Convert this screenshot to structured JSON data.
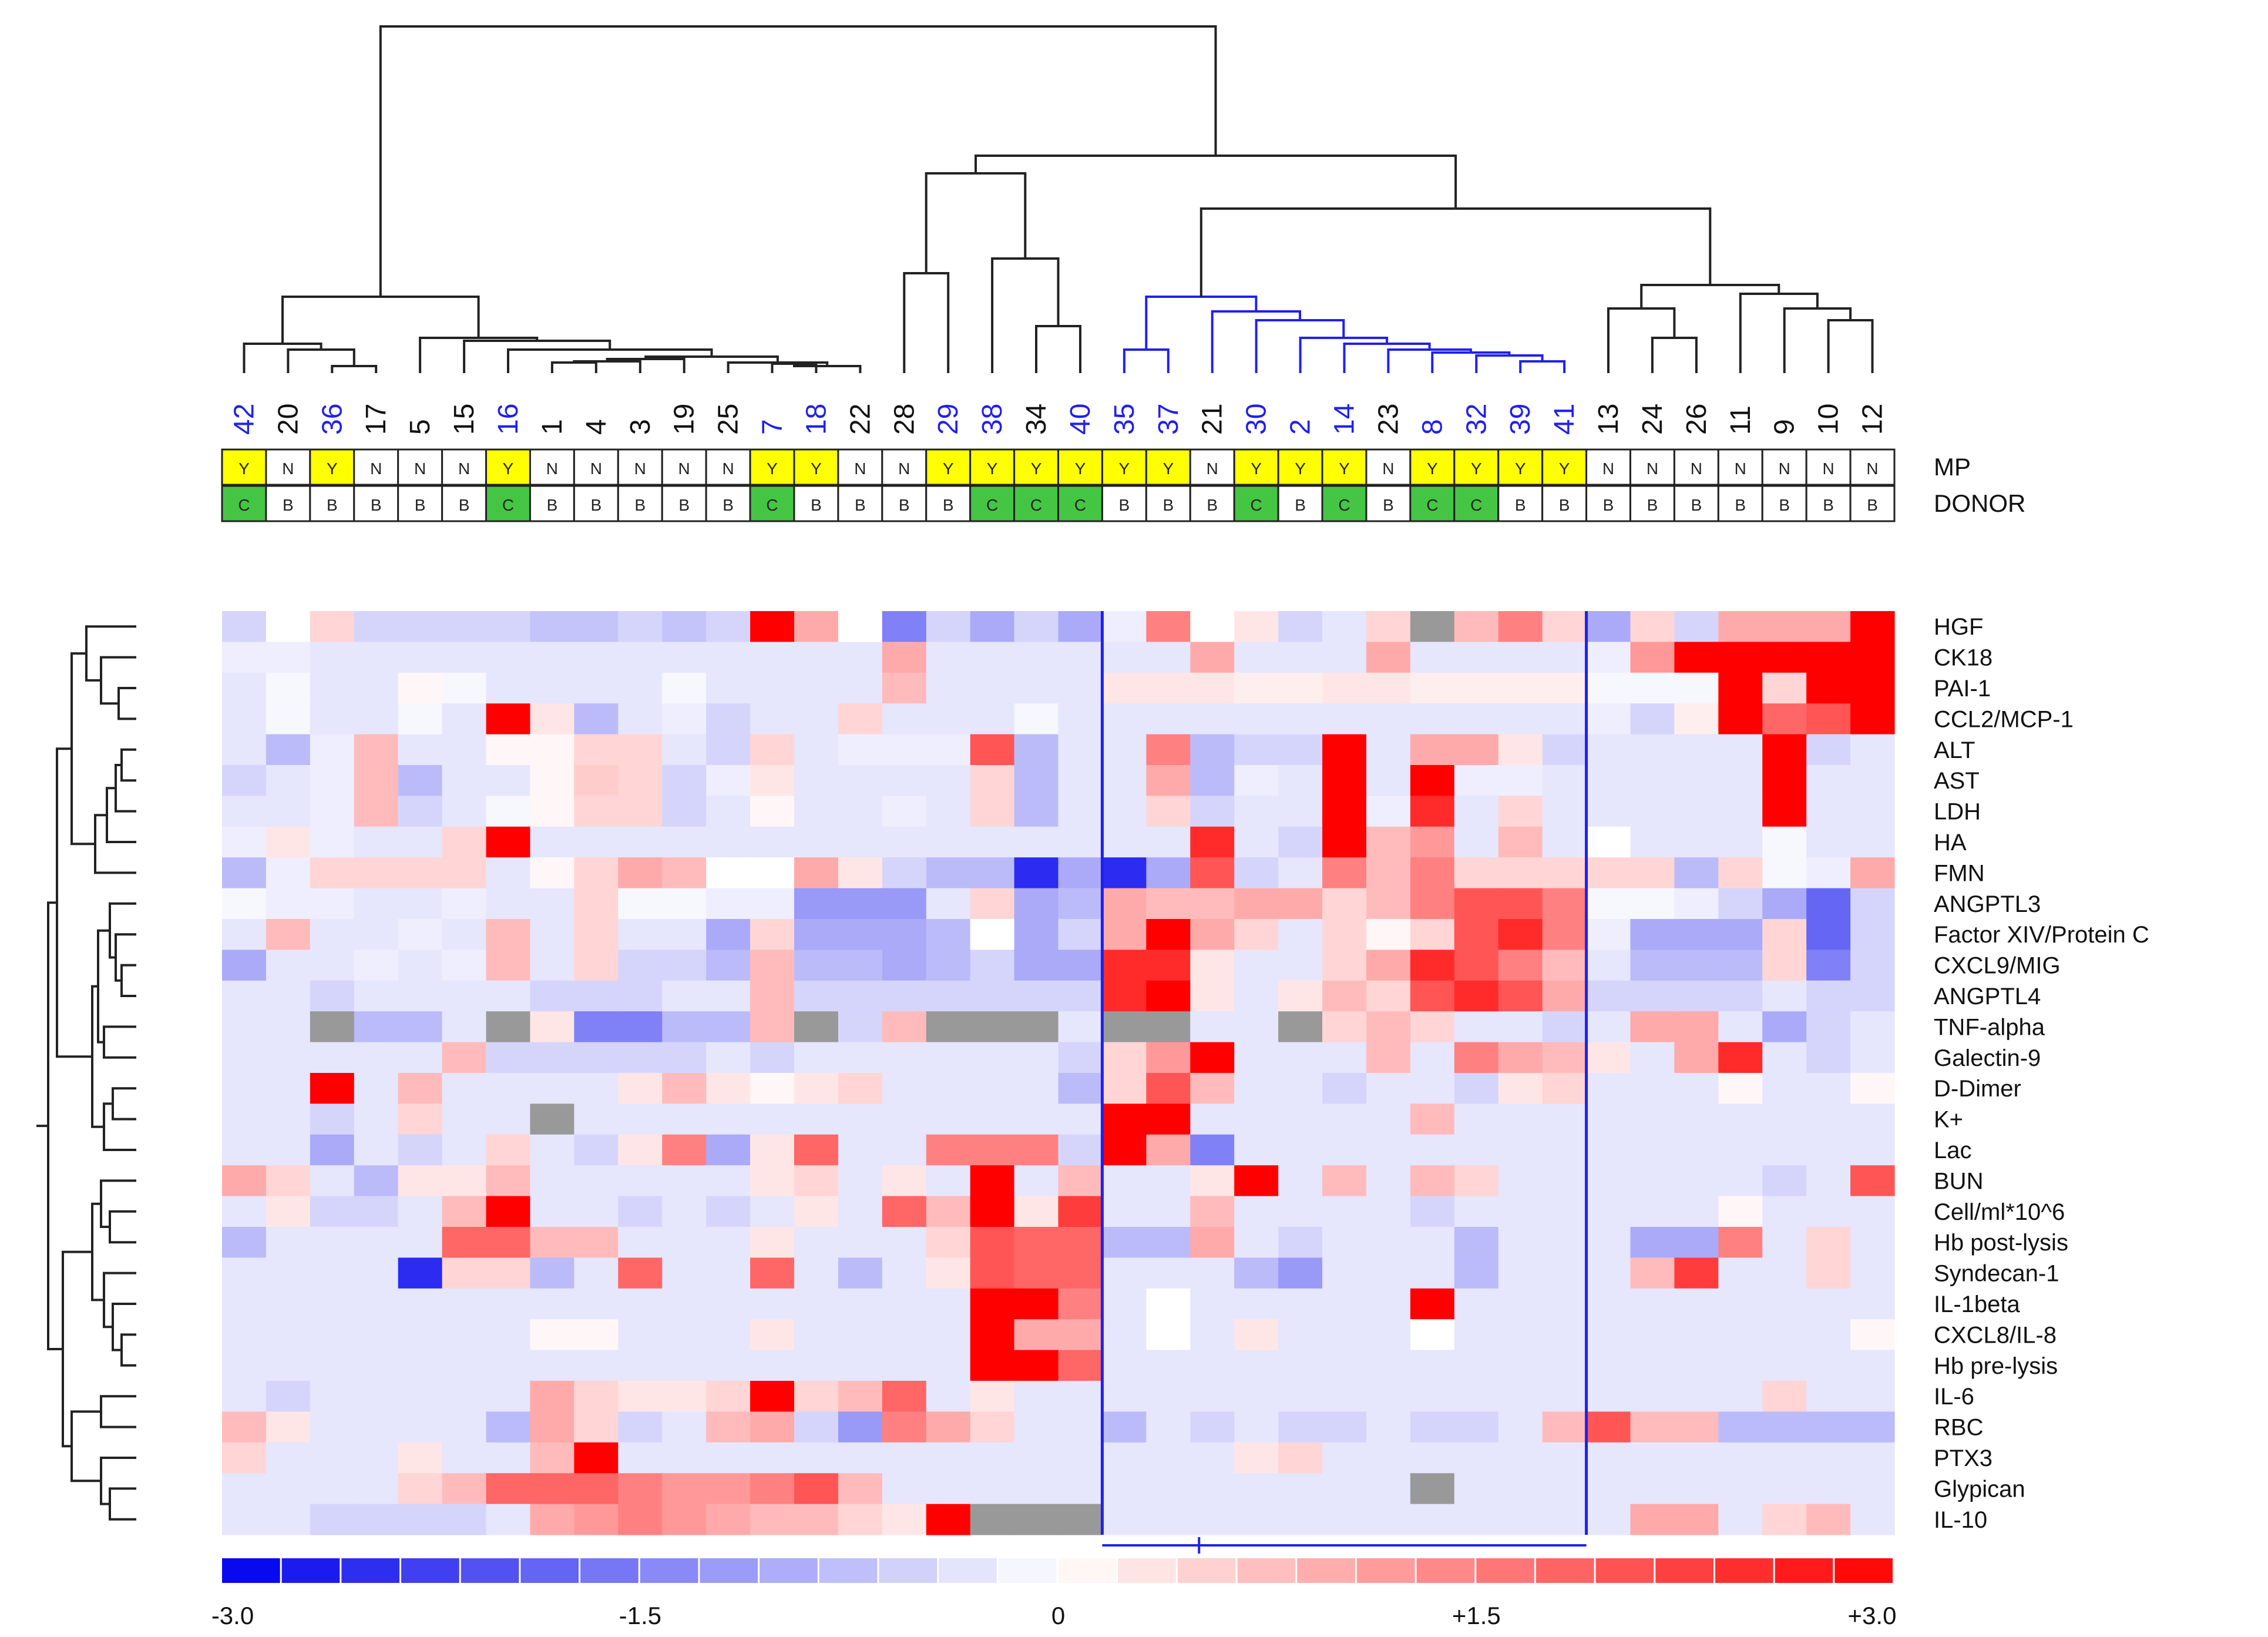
{
  "chart_data": {
    "type": "heatmap",
    "title": "",
    "columns": [
      "42",
      "20",
      "36",
      "17",
      "5",
      "15",
      "16",
      "1",
      "4",
      "3",
      "19",
      "25",
      "7",
      "18",
      "22",
      "28",
      "29",
      "38",
      "34",
      "40",
      "35",
      "37",
      "21",
      "30",
      "2",
      "14",
      "23",
      "8",
      "32",
      "39",
      "41",
      "13",
      "24",
      "26",
      "11",
      "9",
      "10",
      "12"
    ],
    "column_label_colors": [
      "blue",
      "black",
      "blue",
      "black",
      "black",
      "black",
      "blue",
      "black",
      "black",
      "black",
      "black",
      "black",
      "blue",
      "blue",
      "black",
      "black",
      "blue",
      "blue",
      "black",
      "blue",
      "blue",
      "blue",
      "black",
      "blue",
      "blue",
      "blue",
      "black",
      "blue",
      "blue",
      "blue",
      "blue",
      "black",
      "black",
      "black",
      "black",
      "black",
      "black",
      "black"
    ],
    "rows": [
      "HGF",
      "CK18",
      "PAI-1",
      "CCL2/MCP-1",
      "ALT",
      "AST",
      "LDH",
      "HA",
      "FMN",
      "ANGPTL3",
      "Factor XIV/Protein C",
      "CXCL9/MIG",
      "ANGPTL4",
      "TNF-alpha",
      "Galectin-9",
      "D-Dimer",
      "K+",
      "Lac",
      "BUN",
      "Cell/ml*10^6",
      "Hb post-lysis",
      "Syndecan-1",
      "IL-1beta",
      "CXCL8/IL-8",
      "Hb pre-lysis",
      "IL-6",
      "RBC",
      "PTX3",
      "Glypican",
      "IL-10"
    ],
    "annotation_tracks": [
      {
        "label": "MP",
        "values": [
          "Y",
          "N",
          "Y",
          "N",
          "N",
          "N",
          "Y",
          "N",
          "N",
          "N",
          "N",
          "N",
          "Y",
          "Y",
          "N",
          "N",
          "Y",
          "Y",
          "Y",
          "Y",
          "Y",
          "Y",
          "N",
          "Y",
          "Y",
          "Y",
          "N",
          "Y",
          "Y",
          "Y",
          "Y",
          "N",
          "N",
          "N",
          "N",
          "N",
          "N",
          "N"
        ]
      },
      {
        "label": "DONOR",
        "values": [
          "C",
          "B",
          "B",
          "B",
          "B",
          "B",
          "C",
          "B",
          "B",
          "B",
          "B",
          "B",
          "C",
          "B",
          "B",
          "B",
          "B",
          "C",
          "C",
          "C",
          "B",
          "B",
          "B",
          "C",
          "B",
          "C",
          "B",
          "C",
          "C",
          "B",
          "B",
          "B",
          "B",
          "B",
          "B",
          "B",
          "B",
          "B"
        ]
      }
    ],
    "track_colors": {
      "Y": "#ffff00",
      "N": "#ffffff",
      "C": "#44c644",
      "B": "#ffffff"
    },
    "highlighted_cluster_columns": [
      "35",
      "37",
      "21",
      "30",
      "2",
      "14",
      "23",
      "8",
      "32",
      "39",
      "41"
    ],
    "color_scale": {
      "min": -3.0,
      "max": 3.0,
      "low_color": "#0000ee",
      "mid_color": "#ffffff",
      "high_color": "#ff0000",
      "missing_color": "#999999",
      "tick_labels": [
        "-3.0",
        "-1.5",
        "0",
        "+1.5",
        "+3.0"
      ],
      "tick_values": [
        -3.0,
        -1.5,
        0,
        1.5,
        3.0
      ]
    },
    "matrix": [
      [
        -0.5,
        0,
        0.5,
        -0.5,
        -0.5,
        -0.5,
        -0.5,
        -0.7,
        -0.7,
        -0.5,
        -0.7,
        -0.5,
        3,
        1,
        0,
        -1.5,
        -0.5,
        -1,
        -0.5,
        -1,
        -0.2,
        1.5,
        0,
        0.3,
        -0.5,
        -0.3,
        0.5,
        null,
        0.8,
        1.5,
        0.5,
        -1,
        0.5,
        -0.5,
        1,
        1,
        1,
        3
      ],
      [
        -0.2,
        -0.2,
        -0.3,
        -0.3,
        -0.3,
        -0.3,
        -0.3,
        -0.3,
        -0.3,
        -0.3,
        -0.3,
        -0.3,
        -0.3,
        -0.3,
        -0.3,
        1,
        -0.3,
        -0.3,
        -0.3,
        -0.3,
        -0.3,
        -0.3,
        1,
        -0.3,
        -0.3,
        -0.3,
        1,
        -0.3,
        -0.3,
        -0.3,
        -0.3,
        -0.2,
        1.2,
        3,
        3,
        3,
        3,
        3
      ],
      [
        -0.3,
        -0.1,
        -0.3,
        -0.3,
        0.1,
        -0.1,
        -0.3,
        -0.3,
        -0.3,
        -0.3,
        -0.1,
        -0.3,
        -0.3,
        -0.3,
        -0.3,
        0.8,
        -0.3,
        -0.3,
        -0.3,
        -0.3,
        0.3,
        0.3,
        0.3,
        0.2,
        0.2,
        0.3,
        0.3,
        0.2,
        0.2,
        0.2,
        0.2,
        -0.1,
        -0.1,
        -0.1,
        3,
        0.5,
        3,
        3
      ],
      [
        -0.3,
        -0.1,
        -0.3,
        -0.3,
        -0.1,
        -0.3,
        3,
        0.3,
        -0.8,
        -0.3,
        -0.2,
        -0.5,
        -0.3,
        -0.3,
        0.5,
        -0.3,
        -0.3,
        -0.3,
        -0.1,
        -0.3,
        -0.3,
        -0.3,
        -0.3,
        -0.3,
        -0.3,
        -0.3,
        -0.3,
        -0.3,
        -0.3,
        -0.3,
        -0.3,
        -0.2,
        -0.5,
        0.2,
        3,
        1.8,
        2,
        3
      ],
      [
        -0.3,
        -0.8,
        -0.2,
        0.8,
        -0.3,
        -0.3,
        0.1,
        0.1,
        0.5,
        0.5,
        -0.3,
        -0.5,
        0.5,
        -0.3,
        -0.2,
        -0.2,
        -0.2,
        2,
        -0.8,
        -0.3,
        -0.3,
        1.5,
        -0.8,
        -0.5,
        -0.5,
        3,
        -0.3,
        1,
        1,
        0.3,
        -0.5,
        -0.3,
        -0.3,
        -0.3,
        -0.3,
        3,
        -0.5,
        -0.3
      ],
      [
        -0.5,
        -0.3,
        -0.2,
        0.8,
        -0.8,
        -0.3,
        -0.3,
        0.1,
        0.6,
        0.5,
        -0.5,
        -0.2,
        0.3,
        -0.3,
        -0.3,
        -0.3,
        -0.3,
        0.5,
        -0.8,
        -0.3,
        -0.3,
        1,
        -0.8,
        -0.2,
        -0.3,
        3,
        -0.3,
        3,
        -0.2,
        -0.2,
        -0.3,
        -0.3,
        -0.3,
        -0.3,
        -0.3,
        3,
        -0.3,
        -0.3
      ],
      [
        -0.3,
        -0.3,
        -0.2,
        0.8,
        -0.5,
        -0.3,
        -0.1,
        0.1,
        0.5,
        0.5,
        -0.5,
        -0.3,
        0.1,
        -0.3,
        -0.3,
        -0.2,
        -0.3,
        0.5,
        -0.8,
        -0.3,
        -0.3,
        0.5,
        -0.5,
        -0.3,
        -0.3,
        3,
        -0.2,
        2.5,
        -0.3,
        0.5,
        -0.3,
        -0.3,
        -0.3,
        -0.3,
        -0.3,
        3,
        -0.3,
        -0.3
      ],
      [
        -0.2,
        0.3,
        -0.2,
        -0.3,
        -0.3,
        0.5,
        3,
        -0.3,
        -0.3,
        -0.3,
        -0.3,
        -0.3,
        -0.3,
        -0.3,
        -0.3,
        -0.3,
        -0.3,
        -0.3,
        -0.3,
        -0.3,
        -0.3,
        -0.3,
        2.5,
        -0.3,
        -0.5,
        3,
        0.8,
        1.2,
        -0.3,
        0.8,
        -0.3,
        0,
        -0.3,
        -0.3,
        -0.3,
        -0.1,
        -0.3,
        -0.3
      ],
      [
        -0.8,
        -0.2,
        0.5,
        0.5,
        0.5,
        0.5,
        -0.3,
        0.1,
        0.5,
        1,
        0.8,
        0,
        0,
        1,
        0.3,
        -0.5,
        -0.8,
        -0.8,
        -2.5,
        -1,
        -2.5,
        -1,
        2,
        -0.5,
        -0.3,
        1.5,
        0.8,
        1.5,
        0.5,
        0.5,
        0.5,
        0.5,
        0.5,
        -0.8,
        0.5,
        -0.1,
        -0.2,
        1
      ],
      [
        -0.1,
        -0.2,
        -0.2,
        -0.3,
        -0.3,
        -0.2,
        -0.3,
        -0.3,
        0.5,
        -0.1,
        -0.1,
        -0.2,
        -0.2,
        -1.2,
        -1.2,
        -1.2,
        -0.3,
        0.5,
        -1,
        -0.8,
        1,
        0.8,
        0.8,
        1,
        1,
        0.5,
        0.8,
        1.5,
        2,
        2,
        1.5,
        -0.1,
        -0.1,
        -0.2,
        -0.5,
        -1,
        -1.8,
        -0.5
      ],
      [
        -0.3,
        0.8,
        -0.3,
        -0.3,
        -0.2,
        -0.3,
        0.8,
        -0.3,
        0.5,
        -0.3,
        -0.3,
        -1,
        0.5,
        -1,
        -1,
        -1,
        -0.8,
        0,
        -1,
        -0.5,
        1,
        3,
        1,
        0.5,
        -0.3,
        0.5,
        0.1,
        0.5,
        2,
        2.5,
        1.5,
        -0.2,
        -1,
        -1,
        -1,
        0.5,
        -1.8,
        -0.5
      ],
      [
        -1,
        -0.3,
        -0.3,
        -0.2,
        -0.3,
        -0.2,
        0.8,
        -0.3,
        0.5,
        -0.5,
        -0.5,
        -0.8,
        0.8,
        -0.8,
        -0.8,
        -1,
        -0.8,
        -0.5,
        -1,
        -1,
        2.5,
        2.5,
        0.3,
        -0.3,
        -0.3,
        0.5,
        1,
        2.5,
        2,
        1.5,
        0.8,
        -0.3,
        -0.8,
        -0.8,
        -0.8,
        0.5,
        -1.5,
        -0.5
      ],
      [
        -0.3,
        -0.3,
        -0.5,
        -0.3,
        -0.3,
        -0.3,
        -0.3,
        -0.5,
        -0.5,
        -0.5,
        -0.3,
        -0.3,
        0.8,
        -0.5,
        -0.5,
        -0.5,
        -0.5,
        -0.5,
        -0.5,
        -0.5,
        2.5,
        3,
        0.3,
        -0.3,
        0.3,
        0.8,
        0.5,
        2,
        2.5,
        2,
        1,
        -0.5,
        -0.5,
        -0.5,
        -0.5,
        -0.3,
        -0.5,
        -0.5
      ],
      [
        -0.3,
        -0.3,
        null,
        -0.8,
        -0.8,
        -0.3,
        null,
        0.3,
        -1.5,
        -1.5,
        -0.8,
        -0.8,
        0.8,
        null,
        -0.5,
        0.8,
        null,
        null,
        null,
        -0.3,
        null,
        null,
        -0.3,
        -0.3,
        null,
        0.5,
        0.8,
        0.5,
        -0.3,
        -0.3,
        -0.5,
        -0.3,
        1,
        1,
        -0.3,
        -1,
        -0.5,
        -0.3
      ],
      [
        -0.3,
        -0.3,
        -0.3,
        -0.3,
        -0.3,
        0.8,
        -0.5,
        -0.5,
        -0.5,
        -0.5,
        -0.5,
        -0.3,
        -0.5,
        -0.3,
        -0.3,
        -0.3,
        -0.3,
        -0.3,
        -0.3,
        -0.5,
        0.5,
        1.2,
        3,
        -0.3,
        -0.3,
        -0.3,
        0.8,
        -0.3,
        1.5,
        1,
        0.8,
        0.3,
        -0.3,
        1,
        2.5,
        -0.3,
        -0.5,
        -0.3
      ],
      [
        -0.3,
        -0.3,
        3,
        -0.3,
        0.8,
        -0.3,
        -0.3,
        -0.3,
        -0.3,
        0.3,
        0.8,
        0.3,
        0.1,
        0.3,
        0.5,
        -0.3,
        -0.3,
        -0.3,
        -0.3,
        -0.8,
        0.5,
        2,
        0.8,
        -0.3,
        -0.3,
        -0.5,
        -0.3,
        -0.3,
        -0.5,
        0.3,
        0.5,
        -0.3,
        -0.3,
        -0.3,
        0.1,
        -0.3,
        -0.3,
        0.1
      ],
      [
        -0.3,
        -0.3,
        -0.5,
        -0.3,
        0.5,
        -0.3,
        -0.3,
        null,
        -0.3,
        -0.3,
        -0.3,
        -0.3,
        -0.3,
        -0.3,
        -0.3,
        -0.3,
        -0.3,
        -0.3,
        -0.3,
        -0.3,
        3,
        3,
        -0.3,
        -0.3,
        -0.3,
        -0.3,
        -0.3,
        0.8,
        -0.3,
        -0.3,
        -0.3,
        -0.3,
        -0.3,
        -0.3,
        -0.3,
        -0.3,
        -0.3,
        -0.3
      ],
      [
        -0.3,
        -0.3,
        -1,
        -0.3,
        -0.5,
        -0.3,
        0.5,
        -0.3,
        -0.5,
        0.3,
        1.5,
        -1,
        0.3,
        1.8,
        -0.3,
        -0.3,
        1.5,
        1.5,
        1.5,
        -0.5,
        3,
        1,
        -1.5,
        -0.3,
        -0.3,
        -0.3,
        -0.3,
        -0.3,
        -0.3,
        -0.3,
        -0.3,
        -0.3,
        -0.3,
        -0.3,
        -0.3,
        -0.3,
        -0.3,
        -0.3
      ],
      [
        1,
        0.5,
        -0.3,
        -0.8,
        0.3,
        0.3,
        0.8,
        -0.3,
        -0.3,
        -0.3,
        -0.3,
        -0.3,
        0.3,
        0.5,
        -0.3,
        0.3,
        -0.3,
        3,
        -0.3,
        0.8,
        -0.3,
        -0.3,
        0.3,
        3,
        -0.3,
        0.8,
        -0.3,
        0.8,
        0.5,
        -0.3,
        -0.3,
        -0.3,
        -0.3,
        -0.3,
        -0.3,
        -0.5,
        -0.3,
        2
      ],
      [
        -0.3,
        0.3,
        -0.5,
        -0.5,
        -0.3,
        0.8,
        3,
        -0.3,
        -0.3,
        -0.5,
        -0.3,
        -0.5,
        -0.3,
        0.3,
        -0.3,
        1.8,
        0.8,
        3,
        0.3,
        2.3,
        -0.3,
        -0.3,
        0.8,
        -0.3,
        -0.3,
        -0.3,
        -0.3,
        -0.5,
        -0.3,
        -0.3,
        -0.3,
        -0.3,
        -0.3,
        -0.3,
        0.1,
        -0.3,
        -0.3,
        -0.3
      ],
      [
        -0.8,
        -0.3,
        -0.3,
        -0.3,
        -0.3,
        1.8,
        1.8,
        0.8,
        0.8,
        -0.3,
        -0.3,
        -0.3,
        0.3,
        -0.3,
        -0.3,
        -0.3,
        0.5,
        2,
        1.8,
        1.8,
        -0.8,
        -0.8,
        1,
        -0.3,
        -0.5,
        -0.3,
        -0.3,
        -0.3,
        -0.8,
        -0.3,
        -0.3,
        -0.3,
        -1,
        -1,
        1.5,
        -0.3,
        0.5,
        -0.3
      ],
      [
        -0.3,
        -0.3,
        -0.3,
        -0.3,
        -2.5,
        0.5,
        0.5,
        -0.8,
        -0.3,
        1.8,
        -0.3,
        -0.3,
        1.8,
        -0.3,
        -0.8,
        -0.3,
        0.3,
        2,
        1.8,
        1.8,
        -0.3,
        -0.3,
        -0.3,
        -0.8,
        -1.2,
        -0.3,
        -0.3,
        -0.3,
        -0.8,
        -0.3,
        -0.3,
        -0.3,
        0.8,
        2.3,
        -0.3,
        -0.3,
        0.5,
        -0.3
      ],
      [
        -0.3,
        -0.3,
        -0.3,
        -0.3,
        -0.3,
        -0.3,
        -0.3,
        -0.3,
        -0.3,
        -0.3,
        -0.3,
        -0.3,
        -0.3,
        -0.3,
        -0.3,
        -0.3,
        -0.3,
        3,
        3,
        1.5,
        -0.3,
        0,
        -0.3,
        -0.3,
        -0.3,
        -0.3,
        -0.3,
        3,
        -0.3,
        -0.3,
        -0.3,
        -0.3,
        -0.3,
        -0.3,
        -0.3,
        -0.3,
        -0.3,
        -0.3
      ],
      [
        -0.3,
        -0.3,
        -0.3,
        -0.3,
        -0.3,
        -0.3,
        -0.3,
        0.1,
        0.1,
        -0.3,
        -0.3,
        -0.3,
        0.3,
        -0.3,
        -0.3,
        -0.3,
        -0.3,
        3,
        1,
        1,
        -0.3,
        0,
        -0.3,
        0.3,
        -0.3,
        -0.3,
        -0.3,
        0,
        -0.3,
        -0.3,
        -0.3,
        -0.3,
        -0.3,
        -0.3,
        -0.3,
        -0.3,
        -0.3,
        0.1
      ],
      [
        -0.3,
        -0.3,
        -0.3,
        -0.3,
        -0.3,
        -0.3,
        -0.3,
        -0.3,
        -0.3,
        -0.3,
        -0.3,
        -0.3,
        -0.3,
        -0.3,
        -0.3,
        -0.3,
        -0.3,
        3,
        3,
        1.8,
        -0.3,
        -0.3,
        -0.3,
        -0.3,
        -0.3,
        -0.3,
        -0.3,
        -0.3,
        -0.3,
        -0.3,
        -0.3,
        -0.3,
        -0.3,
        -0.3,
        -0.3,
        -0.3,
        -0.3,
        -0.3
      ],
      [
        -0.3,
        -0.5,
        -0.3,
        -0.3,
        -0.3,
        -0.3,
        -0.3,
        1,
        0.5,
        0.3,
        0.3,
        0.5,
        3,
        0.5,
        0.8,
        1.8,
        -0.3,
        0.3,
        -0.3,
        -0.3,
        -0.3,
        -0.3,
        -0.3,
        -0.3,
        -0.3,
        -0.3,
        -0.3,
        -0.3,
        -0.3,
        -0.3,
        -0.3,
        -0.3,
        -0.3,
        -0.3,
        -0.3,
        0.5,
        -0.3,
        -0.3
      ],
      [
        0.8,
        0.3,
        -0.3,
        -0.3,
        -0.3,
        -0.3,
        -0.8,
        1,
        0.5,
        -0.5,
        -0.3,
        0.8,
        1,
        -0.5,
        -1.2,
        1.5,
        1,
        0.5,
        -0.3,
        -0.3,
        -0.8,
        -0.3,
        -0.5,
        -0.3,
        -0.5,
        -0.5,
        -0.3,
        -0.5,
        -0.5,
        -0.3,
        0.8,
        2,
        0.8,
        0.8,
        -0.8,
        -0.8,
        -0.8,
        -0.8
      ],
      [
        0.5,
        -0.3,
        -0.3,
        -0.3,
        0.3,
        -0.3,
        -0.3,
        0.8,
        3,
        -0.3,
        -0.3,
        -0.3,
        -0.3,
        -0.3,
        -0.3,
        -0.3,
        -0.3,
        -0.3,
        -0.3,
        -0.3,
        -0.3,
        -0.3,
        -0.3,
        0.3,
        0.5,
        -0.3,
        -0.3,
        -0.3,
        -0.3,
        -0.3,
        -0.3,
        -0.3,
        -0.3,
        -0.3,
        -0.3,
        -0.3,
        -0.3,
        -0.3
      ],
      [
        -0.3,
        -0.3,
        -0.3,
        -0.3,
        0.5,
        0.8,
        1.8,
        1.8,
        1.8,
        1.5,
        1.2,
        1.2,
        1.5,
        2,
        0.8,
        -0.3,
        -0.3,
        -0.3,
        -0.3,
        -0.3,
        -0.3,
        -0.3,
        -0.3,
        -0.3,
        -0.3,
        -0.3,
        -0.3,
        null,
        -0.3,
        -0.3,
        -0.3,
        -0.3,
        -0.3,
        -0.3,
        -0.3,
        -0.3,
        -0.3,
        -0.3
      ],
      [
        -0.3,
        -0.3,
        -0.5,
        -0.5,
        -0.5,
        -0.5,
        -0.3,
        1,
        1.2,
        1.5,
        1.2,
        1,
        0.8,
        0.8,
        0.5,
        0.3,
        3,
        null,
        null,
        null,
        -0.3,
        -0.3,
        -0.3,
        -0.3,
        -0.3,
        -0.3,
        -0.3,
        -0.3,
        -0.3,
        -0.3,
        -0.3,
        -0.3,
        1,
        1,
        -0.3,
        0.5,
        0.8,
        -0.3
      ]
    ]
  }
}
